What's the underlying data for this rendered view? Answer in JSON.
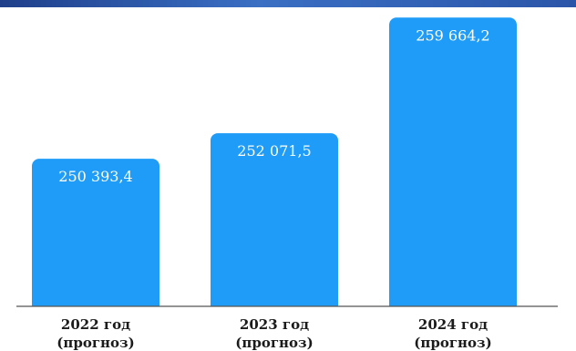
{
  "chart_data": {
    "type": "bar",
    "categories": [
      [
        "2022 год",
        "(прогноз)"
      ],
      [
        "2023 год",
        "(прогноз)"
      ],
      [
        "2024 год",
        "(прогноз)"
      ]
    ],
    "values": [
      250393.4,
      252071.5,
      259664.2
    ],
    "value_labels": [
      "250 393,4",
      "252 071,5",
      "259 664,2"
    ],
    "title": "",
    "xlabel": "",
    "ylabel": "",
    "ylim": [
      240700,
      260100
    ],
    "grid": false,
    "legend": "none",
    "colors": {
      "bar": "#1e9cf7",
      "baseline": "#555555",
      "stripe": "#2b55a8"
    }
  }
}
